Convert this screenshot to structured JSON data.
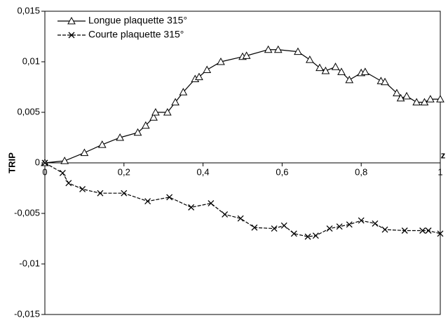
{
  "chart_data": {
    "type": "line",
    "x_label": "z",
    "y_label": "TRIP",
    "xlim": [
      0,
      1
    ],
    "ylim": [
      -0.015,
      0.015
    ],
    "xticks": [
      0,
      {
        "value": 0.2,
        "label": "0,2"
      },
      {
        "value": 0.4,
        "label": "0,4"
      },
      {
        "value": 0.6,
        "label": "0,6"
      },
      {
        "value": 0.8,
        "label": "0,8"
      },
      1
    ],
    "yticks": [
      {
        "value": 0.015,
        "label": "0,015"
      },
      {
        "value": 0.01,
        "label": "0,01"
      },
      {
        "value": 0.005,
        "label": "0,005"
      },
      0,
      {
        "value": -0.005,
        "label": "-0,005"
      },
      {
        "value": -0.01,
        "label": "-0,01"
      },
      {
        "value": -0.015,
        "label": "-0,015"
      }
    ],
    "legend_position": "upper left",
    "series": [
      {
        "name": "Longue plaquette 315°",
        "color": "#000000",
        "marker": "triangle",
        "linestyle": "solid",
        "x": [
          0,
          0.05,
          0.1,
          0.145,
          0.19,
          0.235,
          0.255,
          0.275,
          0.28,
          0.31,
          0.33,
          0.35,
          0.38,
          0.39,
          0.41,
          0.445,
          0.5,
          0.51,
          0.565,
          0.59,
          0.64,
          0.67,
          0.695,
          0.71,
          0.735,
          0.75,
          0.77,
          0.8,
          0.81,
          0.85,
          0.86,
          0.89,
          0.9,
          0.915,
          0.94,
          0.96,
          0.975,
          1
        ],
        "values": [
          0,
          0.0002,
          0.001,
          0.0018,
          0.0025,
          0.003,
          0.0037,
          0.0045,
          0.005,
          0.005,
          0.006,
          0.007,
          0.0083,
          0.0085,
          0.0092,
          0.01,
          0.0105,
          0.0106,
          0.0112,
          0.0112,
          0.011,
          0.0102,
          0.0094,
          0.0091,
          0.0095,
          0.009,
          0.0082,
          0.0089,
          0.009,
          0.0081,
          0.008,
          0.0069,
          0.0064,
          0.0066,
          0.006,
          0.006,
          0.0063,
          0.0063
        ]
      },
      {
        "name": "Courte plaquette 315°",
        "color": "#000000",
        "marker": "x",
        "linestyle": "dashed",
        "x": [
          0,
          0.045,
          0.06,
          0.095,
          0.14,
          0.2,
          0.26,
          0.315,
          0.37,
          0.42,
          0.455,
          0.495,
          0.53,
          0.58,
          0.605,
          0.63,
          0.665,
          0.685,
          0.72,
          0.745,
          0.77,
          0.8,
          0.835,
          0.86,
          0.91,
          0.955,
          0.97,
          1
        ],
        "values": [
          0,
          -0.001,
          -0.002,
          -0.0026,
          -0.003,
          -0.003,
          -0.0038,
          -0.0034,
          -0.0044,
          -0.004,
          -0.0051,
          -0.0055,
          -0.0064,
          -0.0065,
          -0.0062,
          -0.007,
          -0.0073,
          -0.0072,
          -0.0065,
          -0.0063,
          -0.0061,
          -0.0057,
          -0.006,
          -0.0066,
          -0.0067,
          -0.0067,
          -0.0067,
          -0.007
        ]
      }
    ]
  }
}
